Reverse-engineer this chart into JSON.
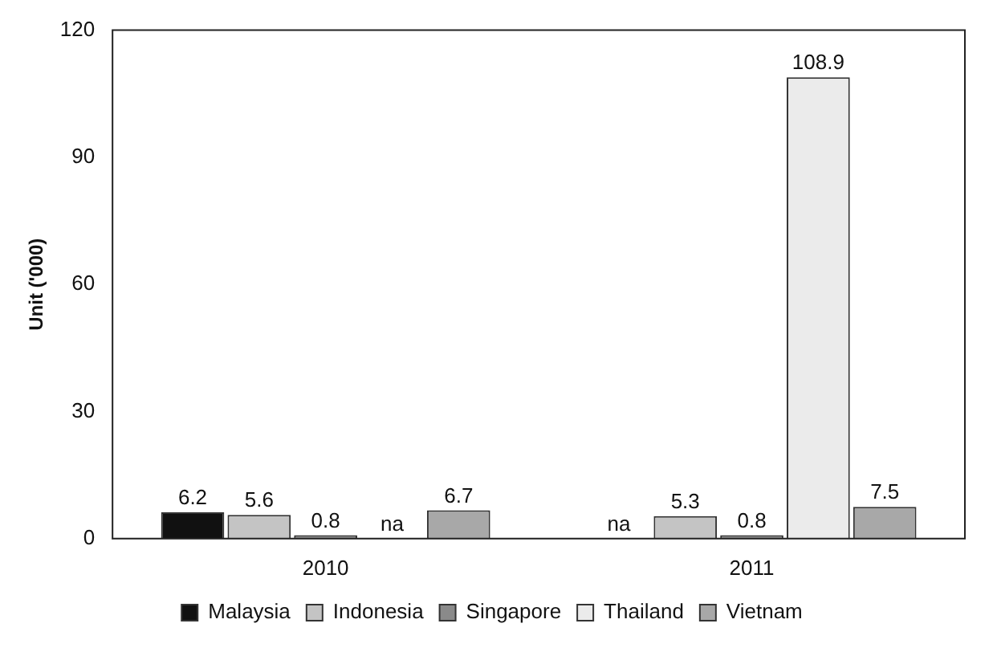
{
  "chart_data": {
    "type": "bar",
    "ylabel": "Unit ('000)",
    "categories": [
      "2010",
      "2011"
    ],
    "series": [
      {
        "name": "Malaysia",
        "color": "#111111",
        "values": [
          6.2,
          null
        ],
        "value_labels": [
          "6.2",
          "na"
        ]
      },
      {
        "name": "Indonesia",
        "color": "#c4c4c4",
        "values": [
          5.6,
          5.3
        ],
        "value_labels": [
          "5.6",
          "5.3"
        ]
      },
      {
        "name": "Singapore",
        "color": "#8a8a8a",
        "values": [
          0.8,
          0.8
        ],
        "value_labels": [
          "0.8",
          "0.8"
        ]
      },
      {
        "name": "Thailand",
        "color": "#ebebeb",
        "values": [
          null,
          108.9
        ],
        "value_labels": [
          "na",
          "108.9"
        ]
      },
      {
        "name": "Vietnam",
        "color": "#a8a8a8",
        "values": [
          6.7,
          7.5
        ],
        "value_labels": [
          "6.7",
          "7.5"
        ]
      }
    ],
    "ylim": [
      0,
      120
    ],
    "yticks": [
      0,
      30,
      60,
      90,
      120
    ],
    "grid": false,
    "legend": "bottom"
  }
}
